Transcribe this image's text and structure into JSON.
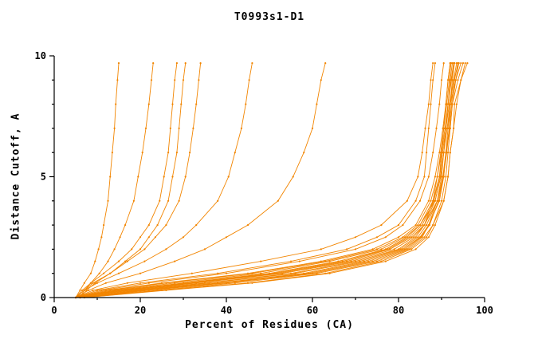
{
  "chart_data": {
    "type": "line",
    "title": "T0993s1-D1",
    "xlabel": "Percent of Residues (CA)",
    "ylabel": "Distance Cutoff, A",
    "xlim": [
      0,
      100
    ],
    "ylim": [
      0,
      10
    ],
    "x_major_ticks": [
      0,
      20,
      40,
      60,
      80,
      100
    ],
    "x_minor_step": 10,
    "y_major_ticks": [
      0,
      5,
      10
    ],
    "y_minor_step": 1,
    "grid": false,
    "legend": "none",
    "line_color": "#f28500",
    "axis_color": "#000000",
    "y_samples": [
      0,
      0.3,
      0.6,
      1,
      1.5,
      2,
      2.5,
      3,
      4,
      5,
      6,
      7,
      8,
      9,
      9.7
    ],
    "series": [
      {
        "x": [
          5,
          18,
          35,
          55,
          70,
          80,
          84,
          86,
          88,
          89,
          90,
          90.5,
          91,
          91.5,
          92
        ]
      },
      {
        "x": [
          6,
          22,
          40,
          60,
          74,
          82,
          85.5,
          87,
          89,
          90,
          90.5,
          91,
          91.5,
          92,
          92.5
        ]
      },
      {
        "x": [
          5,
          15,
          30,
          50,
          66,
          77,
          82,
          85,
          88,
          89.5,
          90,
          90.8,
          91.5,
          92.3,
          93
        ]
      },
      {
        "x": [
          7,
          25,
          45,
          63,
          76,
          83,
          86.5,
          88,
          90,
          91,
          91.5,
          92,
          92.5,
          93.3,
          94
        ]
      },
      {
        "x": [
          5,
          12,
          25,
          45,
          62,
          74,
          80,
          84,
          87,
          88.5,
          89.5,
          90.3,
          91,
          91.5,
          92
        ]
      },
      {
        "x": [
          6,
          20,
          38,
          58,
          72,
          81,
          85,
          87,
          89.5,
          90.5,
          91,
          91.8,
          92,
          92.8,
          93.5
        ]
      },
      {
        "x": [
          5,
          16,
          32,
          52,
          68,
          78,
          83,
          86,
          89,
          90.5,
          91,
          92,
          92.5,
          93.8,
          95
        ]
      },
      {
        "x": [
          6,
          24,
          42,
          61,
          75,
          82.5,
          86,
          88,
          90.5,
          91.5,
          92,
          92.8,
          93,
          94.5,
          96
        ]
      },
      {
        "x": [
          5,
          14,
          28,
          48,
          64,
          76,
          81.5,
          85,
          88.5,
          89.8,
          90.5,
          91.3,
          92,
          92.5,
          93
        ]
      },
      {
        "x": [
          6,
          19,
          36,
          56,
          71,
          80.5,
          84.5,
          86.5,
          89,
          90.3,
          91,
          91.5,
          92,
          93.3,
          94.5
        ]
      },
      {
        "x": [
          5,
          17,
          33,
          53,
          69,
          79,
          83.5,
          86,
          88.5,
          89.8,
          90.5,
          91,
          91.5,
          92.2,
          92.8
        ]
      },
      {
        "x": [
          7,
          26,
          46,
          64,
          77,
          84,
          87,
          88.5,
          90.5,
          91.5,
          92,
          92.8,
          93.5,
          94.5,
          95.5
        ]
      },
      {
        "x": [
          5,
          13,
          26,
          46,
          63,
          75,
          81,
          84.5,
          87.5,
          89,
          89.8,
          90.5,
          91.2,
          91.8,
          92.2
        ]
      },
      {
        "x": [
          6,
          21,
          39,
          59,
          73,
          81.5,
          85.2,
          87.2,
          89.3,
          90.4,
          91.2,
          91.8,
          92.3,
          93,
          93.8
        ]
      },
      {
        "x": [
          5,
          15,
          31,
          51,
          67,
          77.5,
          82.5,
          85.5,
          88.2,
          89.6,
          90.2,
          91,
          91.8,
          92.8,
          94
        ]
      },
      {
        "x": [
          5,
          10,
          20,
          38,
          55,
          68,
          75,
          80,
          84,
          86,
          86.5,
          87,
          87.5,
          88,
          88.5
        ]
      },
      {
        "x": [
          5,
          9,
          17,
          32,
          48,
          62,
          70,
          76,
          82,
          84.5,
          85.5,
          86.2,
          87,
          87.5,
          88
        ]
      },
      {
        "x": [
          5,
          11,
          22,
          40,
          57,
          70,
          77,
          81,
          85,
          87,
          88,
          88.8,
          89.5,
          90,
          90.5
        ]
      },
      {
        "x": [
          5,
          8,
          12,
          20,
          28,
          35,
          40,
          45,
          52,
          55.5,
          58,
          60,
          61,
          62,
          63
        ]
      },
      {
        "x": [
          5,
          7,
          10,
          15,
          21,
          26,
          30,
          33,
          38,
          40.5,
          42,
          43.5,
          44.5,
          45.3,
          46
        ]
      },
      {
        "x": [
          5,
          7,
          9,
          13,
          17,
          21,
          23.5,
          26,
          29,
          30.5,
          31.5,
          32.3,
          33,
          33.6,
          34
        ]
      },
      {
        "x": [
          6,
          7.5,
          9.5,
          13,
          16.5,
          20,
          22,
          24,
          26.5,
          27.5,
          28.5,
          29,
          29.5,
          30,
          30.5
        ]
      },
      {
        "x": [
          5,
          6.5,
          8.5,
          11.5,
          15,
          18,
          20,
          22,
          24.5,
          25.5,
          26.5,
          27,
          27.5,
          28,
          28.5
        ]
      },
      {
        "x": [
          5,
          6,
          7,
          8.5,
          9.5,
          10.3,
          11,
          11.5,
          12.5,
          13,
          13.5,
          14,
          14.3,
          14.7,
          15
        ]
      },
      {
        "x": [
          6,
          7,
          8.5,
          10.5,
          12.5,
          14,
          15.3,
          16.5,
          18.5,
          19.5,
          20.5,
          21.3,
          22,
          22.6,
          23
        ]
      }
    ]
  }
}
